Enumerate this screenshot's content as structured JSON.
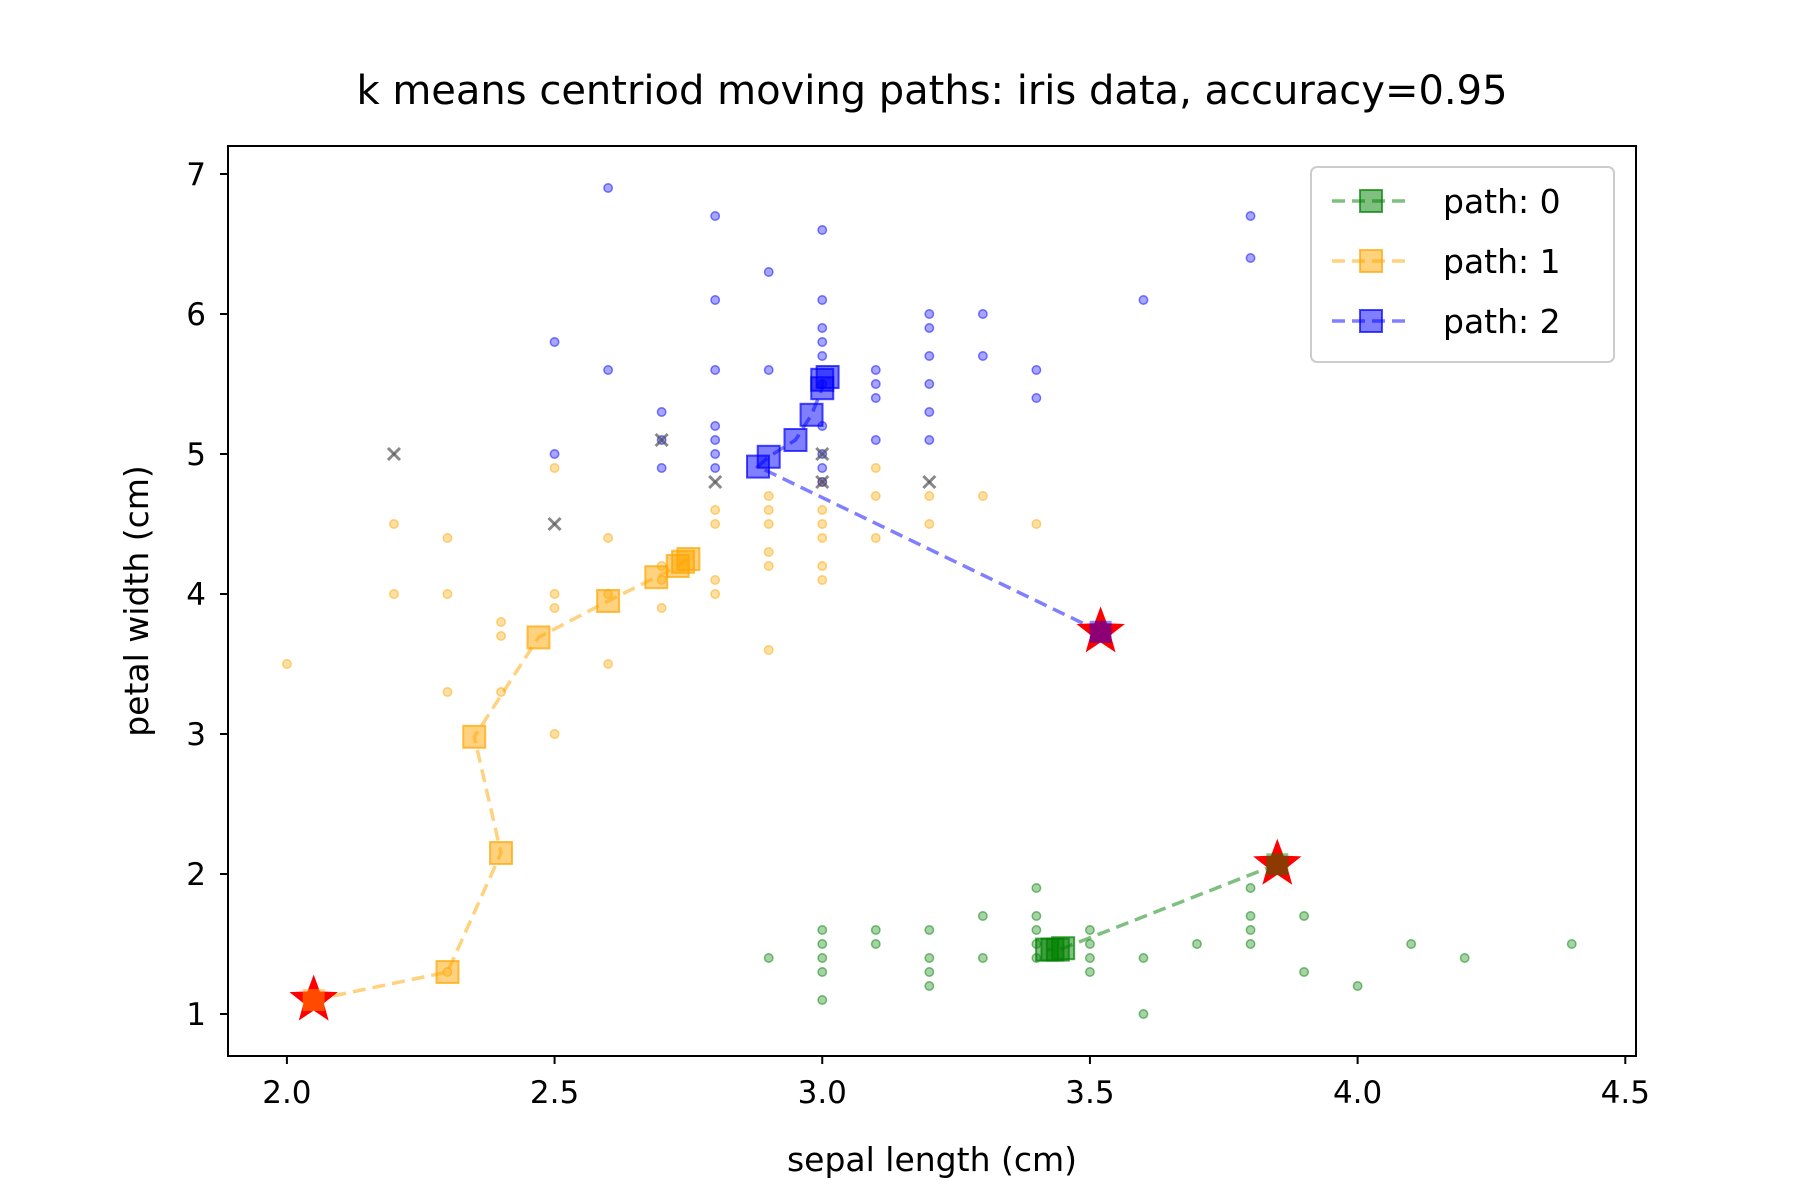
{
  "chart_data": {
    "type": "scatter",
    "title": "k means centriod moving paths: iris data, accuracy=0.95",
    "xlabel": "sepal length (cm)",
    "ylabel": "petal width (cm)",
    "xlim": [
      1.89,
      4.52
    ],
    "ylim": [
      0.7,
      7.2
    ],
    "xticks": [
      "2.0",
      "2.5",
      "3.0",
      "3.5",
      "4.0",
      "4.5"
    ],
    "xtick_values": [
      2.0,
      2.5,
      3.0,
      3.5,
      4.0,
      4.5
    ],
    "yticks": [
      "1",
      "2",
      "3",
      "4",
      "5",
      "6",
      "7"
    ],
    "ytick_values": [
      1,
      2,
      3,
      4,
      5,
      6,
      7
    ],
    "grid": false,
    "legend_position": "top-right",
    "series": [
      {
        "name": "path: 0",
        "color": "#008000",
        "points": [
          [
            3.4,
            1.5
          ],
          [
            3.4,
            1.4
          ],
          [
            3.5,
            1.5
          ],
          [
            3.5,
            1.4
          ],
          [
            3.5,
            1.3
          ],
          [
            3.4,
            1.6
          ],
          [
            3.4,
            1.7
          ],
          [
            3.4,
            1.9
          ],
          [
            3.3,
            1.4
          ],
          [
            3.3,
            1.7
          ],
          [
            3.2,
            1.6
          ],
          [
            3.2,
            1.4
          ],
          [
            3.2,
            1.3
          ],
          [
            3.2,
            1.2
          ],
          [
            3.1,
            1.5
          ],
          [
            3.1,
            1.6
          ],
          [
            3.0,
            1.4
          ],
          [
            3.0,
            1.6
          ],
          [
            3.0,
            1.3
          ],
          [
            3.0,
            1.1
          ],
          [
            3.0,
            1.5
          ],
          [
            2.9,
            1.4
          ],
          [
            3.6,
            1.4
          ],
          [
            3.6,
            1.0
          ],
          [
            3.7,
            1.5
          ],
          [
            3.8,
            1.5
          ],
          [
            3.8,
            1.6
          ],
          [
            3.8,
            1.7
          ],
          [
            3.8,
            1.9
          ],
          [
            3.9,
            1.7
          ],
          [
            3.9,
            1.3
          ],
          [
            4.0,
            1.2
          ],
          [
            4.1,
            1.5
          ],
          [
            4.2,
            1.4
          ],
          [
            4.4,
            1.5
          ],
          [
            3.5,
            1.6
          ]
        ],
        "path": [
          [
            3.85,
            2.07
          ],
          [
            3.45,
            1.47
          ],
          [
            3.44,
            1.46
          ],
          [
            3.43,
            1.46
          ],
          [
            3.42,
            1.46
          ]
        ]
      },
      {
        "name": "path: 1",
        "color": "#FFA500",
        "points": [
          [
            2.0,
            3.5
          ],
          [
            2.2,
            4.5
          ],
          [
            2.2,
            4.0
          ],
          [
            2.3,
            4.4
          ],
          [
            2.3,
            4.0
          ],
          [
            2.3,
            3.3
          ],
          [
            2.3,
            1.3
          ],
          [
            2.4,
            3.8
          ],
          [
            2.4,
            3.7
          ],
          [
            2.4,
            3.3
          ],
          [
            2.5,
            4.9
          ],
          [
            2.5,
            4.0
          ],
          [
            2.5,
            3.9
          ],
          [
            2.5,
            3.0
          ],
          [
            2.6,
            4.4
          ],
          [
            2.6,
            4.0
          ],
          [
            2.6,
            3.5
          ],
          [
            2.7,
            4.2
          ],
          [
            2.7,
            3.9
          ],
          [
            2.7,
            4.1
          ],
          [
            2.8,
            4.1
          ],
          [
            2.8,
            4.0
          ],
          [
            2.8,
            4.5
          ],
          [
            2.9,
            4.7
          ],
          [
            2.9,
            4.6
          ],
          [
            2.9,
            4.5
          ],
          [
            2.9,
            4.3
          ],
          [
            2.9,
            4.2
          ],
          [
            2.9,
            3.6
          ],
          [
            3.0,
            4.8
          ],
          [
            3.0,
            4.6
          ],
          [
            3.0,
            4.5
          ],
          [
            3.0,
            4.4
          ],
          [
            3.0,
            4.2
          ],
          [
            3.0,
            4.1
          ],
          [
            3.1,
            4.9
          ],
          [
            3.1,
            4.7
          ],
          [
            3.1,
            4.4
          ],
          [
            3.2,
            4.7
          ],
          [
            3.2,
            4.5
          ],
          [
            3.3,
            4.7
          ],
          [
            3.4,
            4.5
          ],
          [
            2.8,
            4.6
          ]
        ],
        "path": [
          [
            2.05,
            1.1
          ],
          [
            2.3,
            1.3
          ],
          [
            2.4,
            2.15
          ],
          [
            2.35,
            2.98
          ],
          [
            2.47,
            3.69
          ],
          [
            2.6,
            3.95
          ],
          [
            2.69,
            4.12
          ],
          [
            2.73,
            4.2
          ],
          [
            2.74,
            4.23
          ],
          [
            2.75,
            4.25
          ]
        ]
      },
      {
        "name": "path: 2",
        "color": "#0000FF",
        "points": [
          [
            2.6,
            6.9
          ],
          [
            2.8,
            6.7
          ],
          [
            3.0,
            6.6
          ],
          [
            2.9,
            6.3
          ],
          [
            2.8,
            6.1
          ],
          [
            3.0,
            6.1
          ],
          [
            3.2,
            6.0
          ],
          [
            3.3,
            6.0
          ],
          [
            3.0,
            5.9
          ],
          [
            3.2,
            5.9
          ],
          [
            3.0,
            5.8
          ],
          [
            2.5,
            5.8
          ],
          [
            3.0,
            5.7
          ],
          [
            3.2,
            5.7
          ],
          [
            3.3,
            5.7
          ],
          [
            2.6,
            5.6
          ],
          [
            2.8,
            5.6
          ],
          [
            2.9,
            5.6
          ],
          [
            3.1,
            5.6
          ],
          [
            3.4,
            5.6
          ],
          [
            3.1,
            5.5
          ],
          [
            3.0,
            5.5
          ],
          [
            3.1,
            5.4
          ],
          [
            3.4,
            5.4
          ],
          [
            2.7,
            5.3
          ],
          [
            3.2,
            5.3
          ],
          [
            3.0,
            5.2
          ],
          [
            2.8,
            5.1
          ],
          [
            2.7,
            5.1
          ],
          [
            3.1,
            5.1
          ],
          [
            3.2,
            5.1
          ],
          [
            2.5,
            5.0
          ],
          [
            2.8,
            5.0
          ],
          [
            3.0,
            5.0
          ],
          [
            2.7,
            4.9
          ],
          [
            2.8,
            4.9
          ],
          [
            3.0,
            4.9
          ],
          [
            3.0,
            4.8
          ],
          [
            3.6,
            6.1
          ],
          [
            3.8,
            6.7
          ],
          [
            3.8,
            6.4
          ],
          [
            3.2,
            5.5
          ],
          [
            2.8,
            5.2
          ]
        ],
        "path": [
          [
            3.52,
            3.73
          ],
          [
            2.88,
            4.91
          ],
          [
            2.9,
            4.98
          ],
          [
            2.95,
            5.1
          ],
          [
            2.98,
            5.28
          ],
          [
            3.0,
            5.47
          ],
          [
            3.0,
            5.53
          ],
          [
            3.01,
            5.55
          ]
        ]
      }
    ],
    "misclassified_points": [
      [
        2.2,
        5.0
      ],
      [
        2.5,
        4.5
      ],
      [
        2.7,
        5.1
      ],
      [
        2.8,
        4.8
      ],
      [
        3.0,
        5.0
      ],
      [
        3.0,
        4.8
      ],
      [
        3.2,
        4.8
      ]
    ],
    "initial_centroid_color": "#FF0000"
  }
}
